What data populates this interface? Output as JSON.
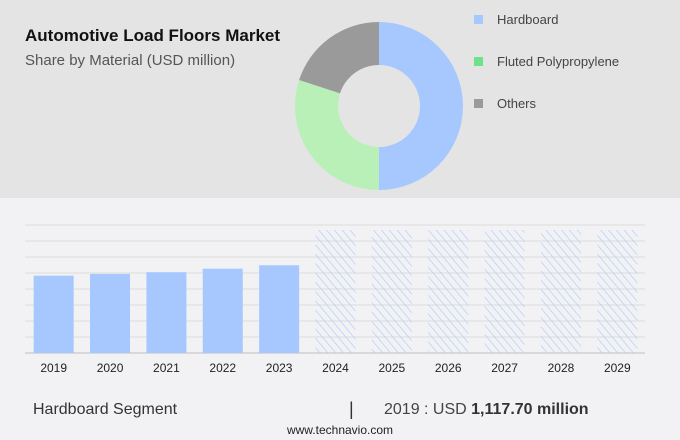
{
  "colors": {
    "hardboard": "#a6c8ff",
    "fluted": "#b8f0b8",
    "others": "#9a9a9a",
    "legend_fluted": "#6ee28a",
    "hatch": "#a6c8ff",
    "grid": "#dcdcdc"
  },
  "chart_data": [
    {
      "type": "pie",
      "donut": true,
      "title": "Automotive Load Floors Market",
      "subtitle": "Share by Material (USD million)",
      "legend": "right",
      "slices": [
        {
          "name": "Hardboard",
          "value": 50
        },
        {
          "name": "Fluted Polypropylene",
          "value": 30
        },
        {
          "name": "Others",
          "value": 20
        }
      ]
    },
    {
      "type": "bar",
      "categories": [
        "2019",
        "2020",
        "2021",
        "2022",
        "2023",
        "2024",
        "2025",
        "2026",
        "2027",
        "2028",
        "2029"
      ],
      "values": [
        1117.7,
        1143,
        1168,
        1218,
        1268,
        null,
        null,
        null,
        null,
        null,
        null
      ],
      "forecast": [
        "2024",
        "2025",
        "2026",
        "2027",
        "2028",
        "2029"
      ],
      "grid": true,
      "ylim": [
        0,
        1850
      ]
    }
  ],
  "footer": {
    "segment": "Hardboard Segment",
    "separator": "|",
    "year_label": "2019 : USD ",
    "value": "1,117.70 million",
    "site": "www.technavio.com"
  }
}
